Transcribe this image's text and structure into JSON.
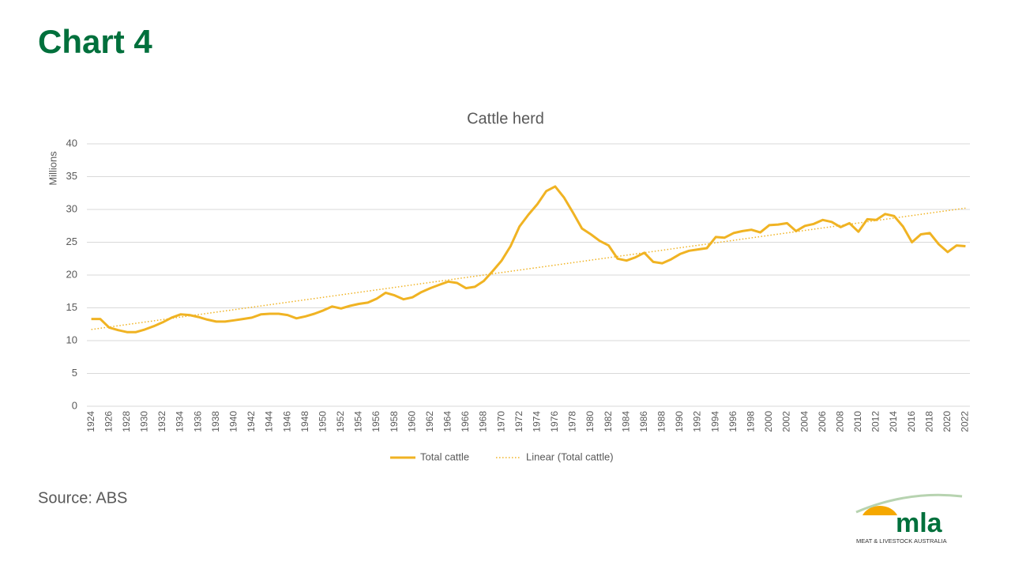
{
  "header": {
    "title": "Chart 4"
  },
  "chart_data": {
    "type": "line",
    "title": "Cattle herd",
    "y_label": "Millions",
    "categories": [
      "1924",
      null,
      "1926",
      null,
      "1928",
      null,
      "1930",
      null,
      "1932",
      null,
      "1934",
      null,
      "1936",
      null,
      "1938",
      null,
      "1940",
      null,
      "1942",
      null,
      "1944",
      null,
      "1946",
      null,
      "1948",
      null,
      "1950",
      null,
      "1952",
      null,
      "1954",
      null,
      "1956",
      null,
      "1958",
      null,
      "1960",
      null,
      "1962",
      null,
      "1964",
      null,
      "1966",
      null,
      "1968",
      null,
      "1970",
      null,
      "1972",
      null,
      "1974",
      null,
      "1976",
      null,
      "1978",
      null,
      "1980",
      null,
      "1982",
      null,
      "1984",
      null,
      "1986",
      null,
      "1988",
      null,
      "1990",
      null,
      "1992",
      null,
      "1994",
      null,
      "1996",
      null,
      "1998",
      null,
      "2000",
      null,
      "2002",
      null,
      "2004",
      null,
      "2006",
      null,
      "2008",
      null,
      "2010",
      null,
      "2012",
      null,
      "2014",
      null,
      "2016",
      null,
      "2018",
      null,
      "2020",
      null,
      "2022"
    ],
    "series": [
      {
        "name": "Total cattle",
        "color": "#f0b323",
        "values": [
          13.3,
          13.3,
          12.0,
          11.6,
          11.3,
          11.3,
          11.7,
          12.2,
          12.8,
          13.5,
          14.0,
          13.9,
          13.6,
          13.2,
          12.9,
          12.9,
          13.1,
          13.3,
          13.5,
          14.0,
          14.1,
          14.1,
          13.9,
          13.4,
          13.7,
          14.1,
          14.6,
          15.2,
          14.9,
          15.3,
          15.6,
          15.8,
          16.4,
          17.3,
          16.9,
          16.3,
          16.6,
          17.4,
          18.0,
          18.5,
          19.0,
          18.8,
          18.0,
          18.2,
          19.1,
          20.6,
          22.2,
          24.4,
          27.4,
          29.2,
          30.8,
          32.8,
          33.5,
          31.8,
          29.5,
          27.1,
          26.2,
          25.2,
          24.5,
          22.5,
          22.2,
          22.7,
          23.4,
          22.0,
          21.8,
          22.4,
          23.2,
          23.7,
          23.9,
          24.1,
          25.8,
          25.7,
          26.4,
          26.7,
          26.9,
          26.5,
          27.6,
          27.7,
          27.9,
          26.7,
          27.5,
          27.8,
          28.4,
          28.1,
          27.3,
          27.9,
          26.6,
          28.5,
          28.4,
          29.3,
          29.0,
          27.4,
          25.0,
          26.2,
          26.4,
          24.7,
          23.5,
          24.5,
          24.4
        ]
      }
    ],
    "trend": {
      "name": "Linear (Total cattle)",
      "color": "#f0b323",
      "start": 11.7,
      "end": 30.2
    },
    "ylim": [
      0,
      40
    ],
    "yticks": [
      0,
      5,
      10,
      15,
      20,
      25,
      30,
      35,
      40
    ],
    "grid": true,
    "legend": "bottom"
  },
  "footer": {
    "source": "Source: ABS",
    "logo": "mla",
    "logo_caption": "MEAT & LIVESTOCK AUSTRALIA"
  }
}
